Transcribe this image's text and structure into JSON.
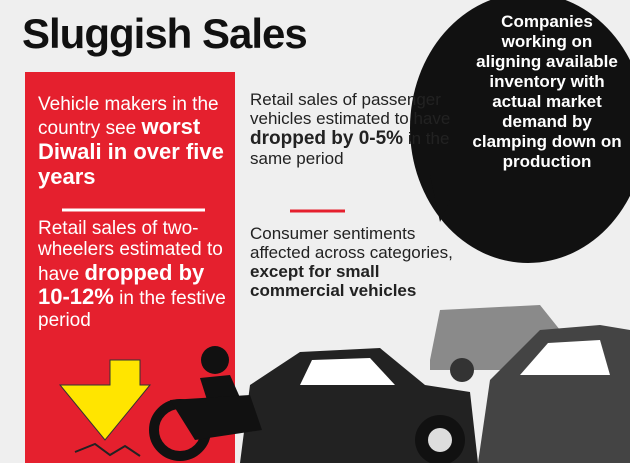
{
  "header": {
    "title": "Sluggish Sales"
  },
  "left_panel": {
    "headline": {
      "lead": "Vehicle makers in the country see",
      "emphasis": "worst Diwali in over five years"
    },
    "two_wheelers": {
      "lead": "Retail sales of two-wheelers estimated to have",
      "emphasis": "dropped by 10-12%",
      "tail": "in the festive period"
    }
  },
  "middle_panel": {
    "passenger_vehicles": {
      "lead": "Retail sales of passenger vehicles estimated to have",
      "emphasis": "dropped by 0-5%",
      "tail": "in the same period"
    },
    "sentiment": {
      "lead": "Consumer sentiments affected across categories,",
      "emphasis": "except for small commercial vehicles"
    }
  },
  "speech_bubble": {
    "text": "Companies working on aligning available inventory with actual market demand by clamping down on production"
  }
}
